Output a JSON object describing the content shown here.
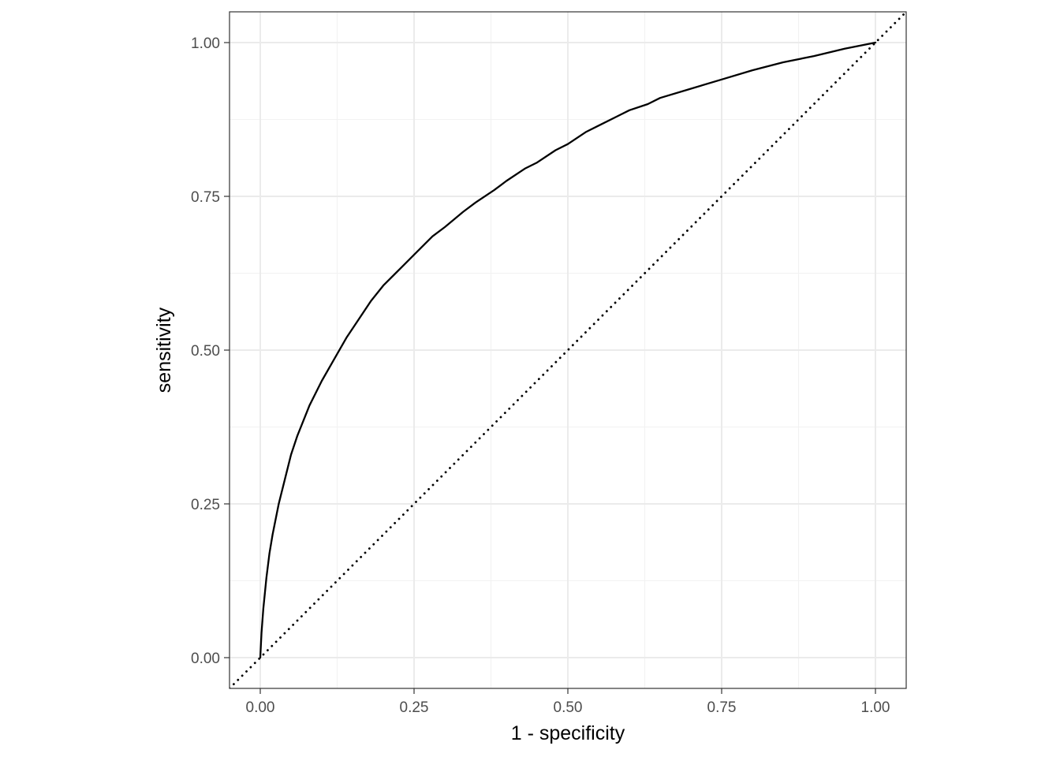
{
  "chart_data": {
    "type": "line",
    "title": "",
    "xlabel": "1 - specificity",
    "ylabel": "sensitivity",
    "xlim": [
      -0.05,
      1.05
    ],
    "ylim": [
      -0.05,
      1.05
    ],
    "x_ticks": [
      0,
      0.25,
      0.5,
      0.75,
      1
    ],
    "x_tick_labels": [
      "0.00",
      "0.25",
      "0.50",
      "0.75",
      "1.00"
    ],
    "y_ticks": [
      0,
      0.25,
      0.5,
      0.75,
      1
    ],
    "y_tick_labels": [
      "0.00",
      "0.25",
      "0.50",
      "0.75",
      "1.00"
    ],
    "grid": true,
    "legend": "none",
    "series": [
      {
        "style": "solid",
        "color": "#000000",
        "x": [
          0,
          0.002,
          0.005,
          0.01,
          0.015,
          0.02,
          0.03,
          0.04,
          0.05,
          0.06,
          0.07,
          0.08,
          0.1,
          0.12,
          0.14,
          0.16,
          0.18,
          0.2,
          0.22,
          0.25,
          0.28,
          0.3,
          0.33,
          0.35,
          0.38,
          0.4,
          0.43,
          0.45,
          0.48,
          0.5,
          0.53,
          0.55,
          0.58,
          0.6,
          0.63,
          0.65,
          0.7,
          0.75,
          0.8,
          0.85,
          0.9,
          0.95,
          1
        ],
        "y": [
          0,
          0.04,
          0.08,
          0.13,
          0.17,
          0.2,
          0.25,
          0.29,
          0.33,
          0.36,
          0.385,
          0.41,
          0.45,
          0.485,
          0.52,
          0.55,
          0.58,
          0.605,
          0.625,
          0.655,
          0.685,
          0.7,
          0.725,
          0.74,
          0.76,
          0.775,
          0.795,
          0.805,
          0.825,
          0.835,
          0.855,
          0.865,
          0.88,
          0.89,
          0.9,
          0.91,
          0.925,
          0.94,
          0.955,
          0.968,
          0.978,
          0.99,
          1
        ]
      },
      {
        "style": "dotted",
        "color": "#000000",
        "x": [
          -0.05,
          1.05
        ],
        "y": [
          -0.05,
          1.05
        ]
      }
    ]
  }
}
